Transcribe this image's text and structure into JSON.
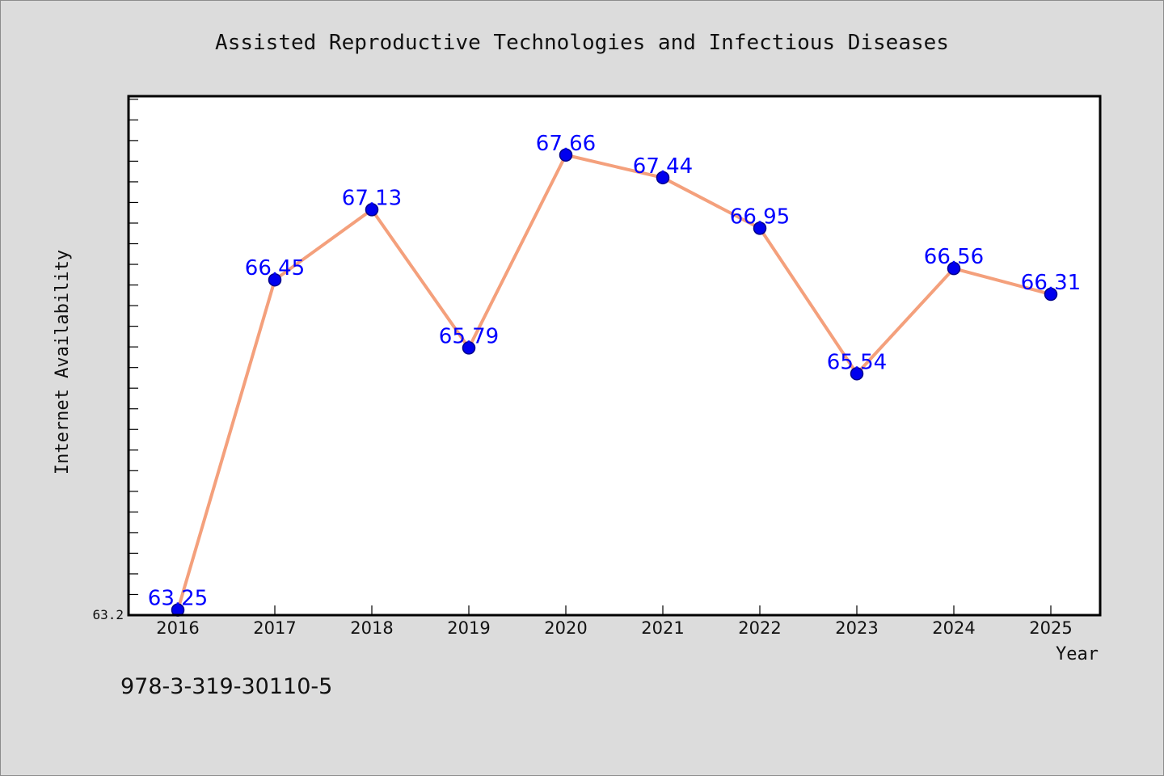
{
  "chart_data": {
    "type": "line",
    "title": "Assisted Reproductive Technologies and Infectious Diseases",
    "xlabel": "Year",
    "ylabel": "Internet Availability",
    "categories": [
      "2016",
      "2017",
      "2018",
      "2019",
      "2020",
      "2021",
      "2022",
      "2023",
      "2024",
      "2025"
    ],
    "series": [
      {
        "values": [
          63.25,
          66.45,
          67.13,
          65.79,
          67.66,
          67.44,
          66.95,
          65.54,
          66.56,
          66.31
        ],
        "labels": [
          "63.25",
          "66.45",
          "67.13",
          "65.79",
          "67.66",
          "67.44",
          "66.95",
          "65.54",
          "66.56",
          "66.31"
        ]
      }
    ],
    "y_tick_labels": [
      "63.2"
    ],
    "ylim": [
      63.2,
      68.23
    ],
    "grid": false,
    "legend": "none"
  },
  "footer": {
    "isbn": "978-3-319-30110-5"
  },
  "colors": {
    "line": "#f4a07c",
    "marker": "#0000ee",
    "marker_edge": "#00008b",
    "data_label": "#0000ff",
    "background": "#dcdcdc",
    "plot_background": "#ffffff"
  }
}
